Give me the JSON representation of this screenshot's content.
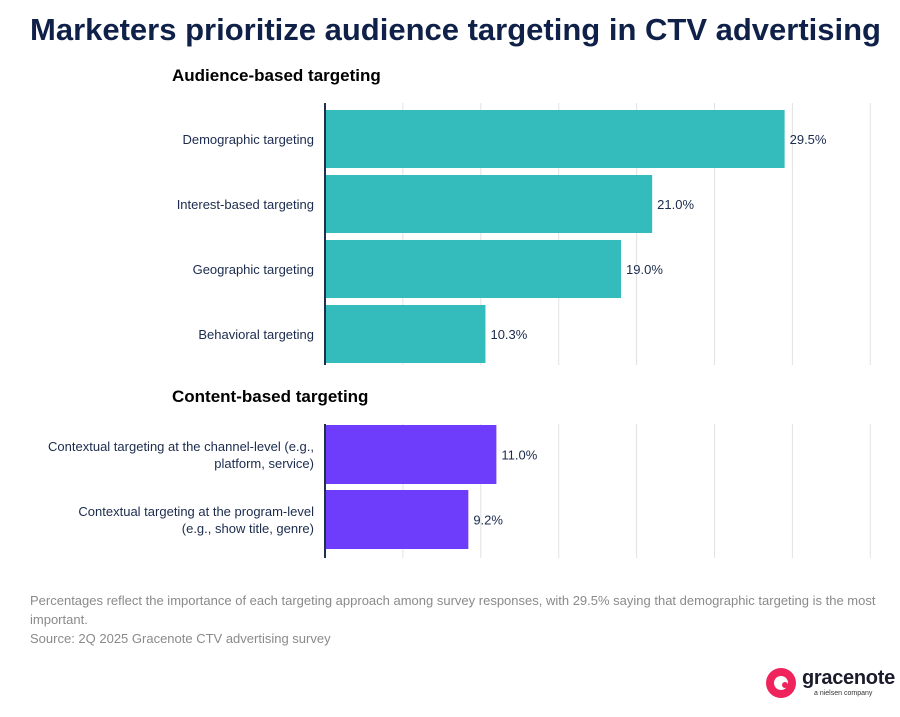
{
  "title": "Marketers prioritize audience targeting in CTV advertising",
  "colors": {
    "audience": "#34bcbc",
    "content": "#6e3cfb",
    "grid": "#e2e2e2",
    "axis": "#1f2f4f"
  },
  "chart_data": [
    {
      "type": "bar",
      "orientation": "horizontal",
      "title": "Audience-based targeting",
      "categories": [
        "Demographic targeting",
        "Interest-based targeting",
        "Geographic targeting",
        "Behavioral targeting"
      ],
      "values": [
        29.5,
        21.0,
        19.0,
        10.3
      ],
      "value_labels": [
        "29.5%",
        "21.0%",
        "19.0%",
        "10.3%"
      ],
      "xlim": [
        0,
        35
      ],
      "grid": true
    },
    {
      "type": "bar",
      "orientation": "horizontal",
      "title": "Content-based targeting",
      "categories": [
        "Contextual targeting at the channel-level (e.g., platform, service)",
        "Contextual targeting at the program-level (e.g., show title, genre)"
      ],
      "values": [
        11.0,
        9.2
      ],
      "value_labels": [
        "11.0%",
        "9.2%"
      ],
      "xlim": [
        0,
        35
      ],
      "grid": true
    }
  ],
  "footnote": {
    "line1": "Percentages reflect the importance of each targeting approach among survey responses, with 29.5% saying that demographic targeting is the most important.",
    "source": "Source: 2Q 2025 Gracenote CTV advertising survey"
  },
  "logo": {
    "word": "gracenote",
    "tagline": "a nielsen company"
  }
}
